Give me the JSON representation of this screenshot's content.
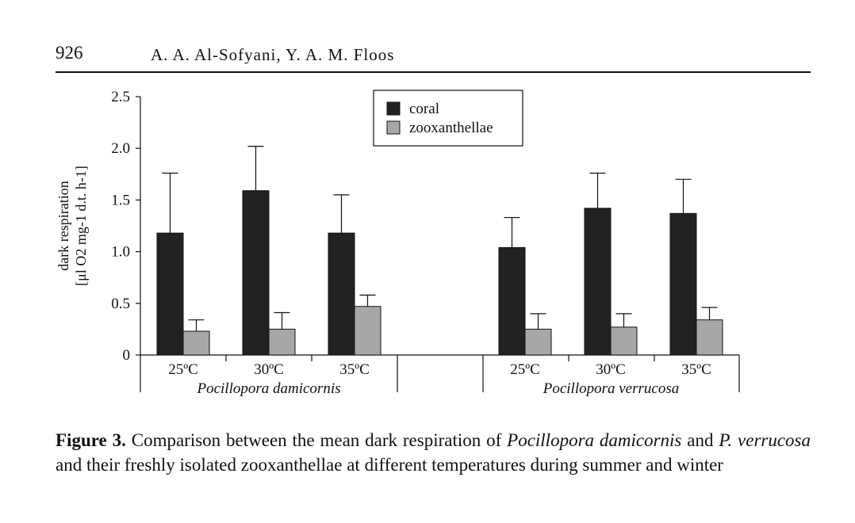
{
  "header": {
    "page_number": "926",
    "authors": "A. A. Al-Sofyani, Y. A. M. Floos"
  },
  "caption": {
    "label": "Figure 3.",
    "text_1": " Comparison between the mean dark respiration of ",
    "species_1": "Pocillopora damicornis",
    "text_2": " and ",
    "species_2": "P. verrucosa",
    "text_3": " and their freshly isolated zooxanthellae at different temperatures during summer and winter"
  },
  "chart_data": {
    "type": "bar",
    "ylabel_line1": "dark respiration",
    "ylabel_line2": "[μl O2 mg-1 d.t. h-1]",
    "ylim": [
      0,
      2.5
    ],
    "yticks": [
      "0",
      "0.5",
      "1.0",
      "1.5",
      "2.0",
      "2.5"
    ],
    "grid": false,
    "legend_position": "top-center",
    "colors": {
      "coral": "#222222",
      "zooxanthellae": "#a7a7a7"
    },
    "groups": [
      {
        "name": "Pocillopora damicornis",
        "categories": [
          "25ºC",
          "30ºC",
          "35ºC"
        ],
        "series": [
          {
            "name": "coral",
            "values": [
              1.18,
              1.59,
              1.18
            ],
            "errors": [
              0.58,
              0.43,
              0.37
            ]
          },
          {
            "name": "zooxanthellae",
            "values": [
              0.23,
              0.25,
              0.47
            ],
            "errors": [
              0.11,
              0.16,
              0.11
            ]
          }
        ]
      },
      {
        "name": "Pocillopora verrucosa",
        "categories": [
          "25ºC",
          "30ºC",
          "35ºC"
        ],
        "series": [
          {
            "name": "coral",
            "values": [
              1.04,
              1.42,
              1.37
            ],
            "errors": [
              0.29,
              0.34,
              0.33
            ]
          },
          {
            "name": "zooxanthellae",
            "values": [
              0.25,
              0.27,
              0.34
            ],
            "errors": [
              0.15,
              0.13,
              0.12
            ]
          }
        ]
      }
    ]
  }
}
